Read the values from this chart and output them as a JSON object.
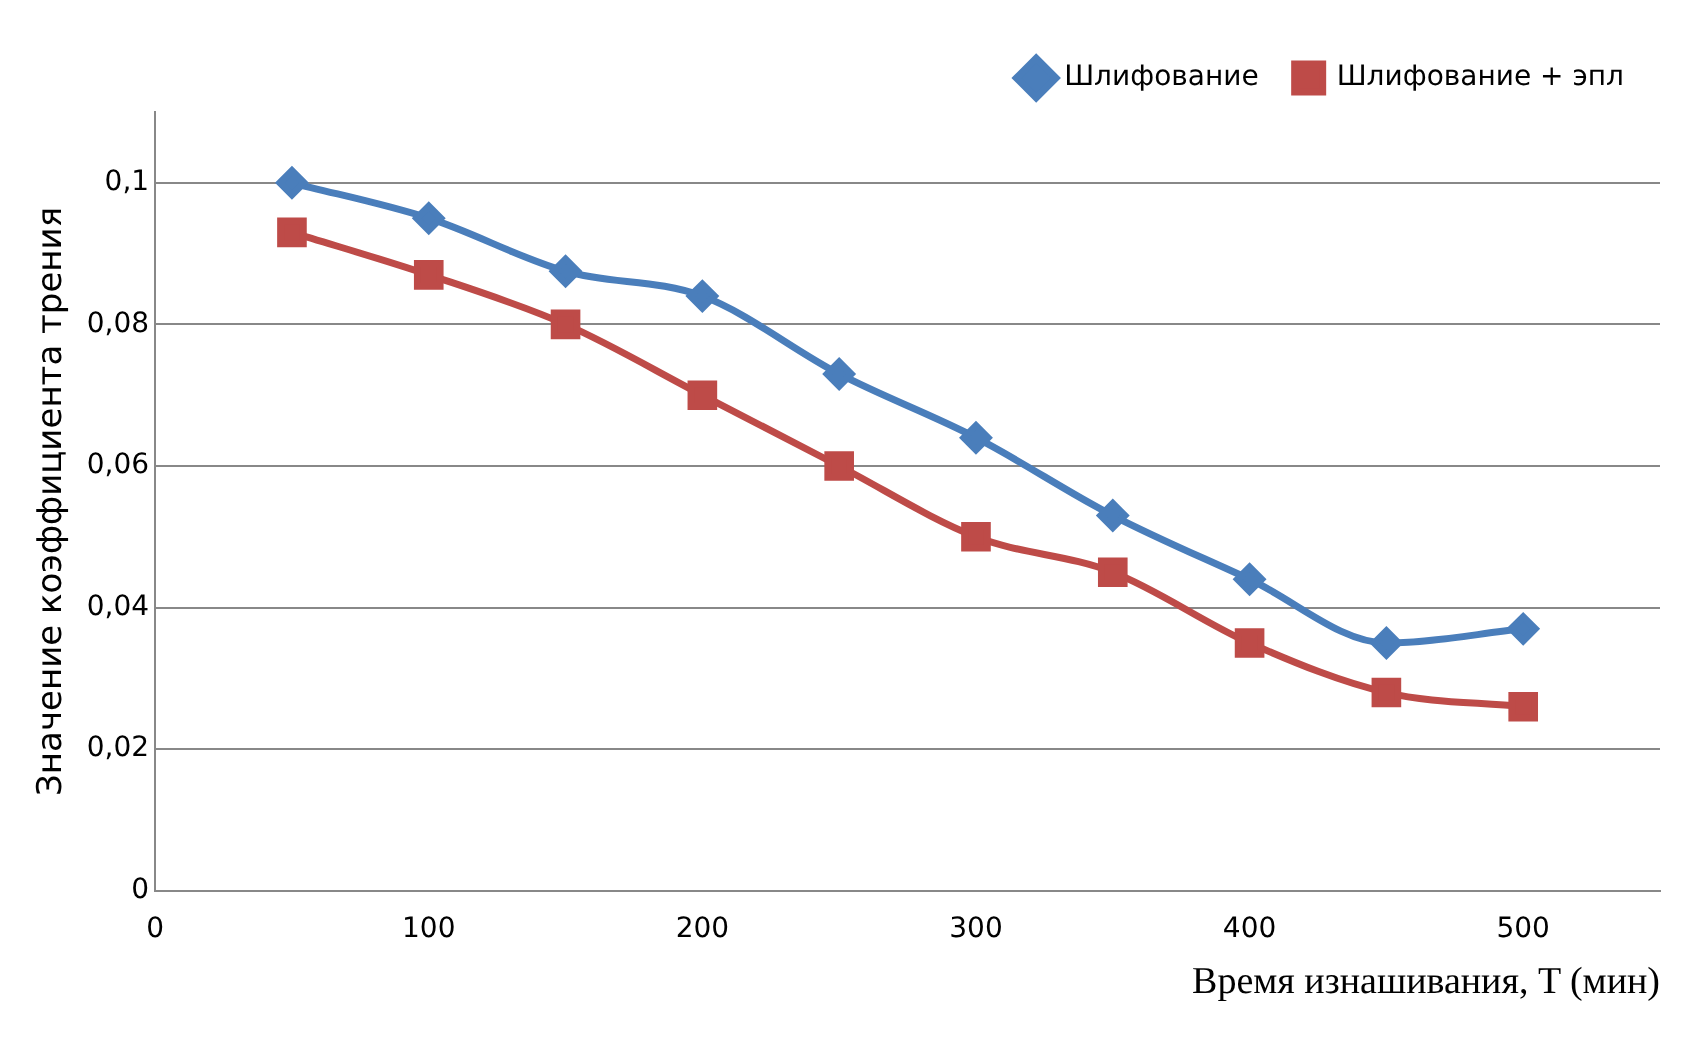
{
  "chart_data": {
    "type": "line",
    "xlabel": "Время изнашивания, T (мин)",
    "ylabel": "Значение коэффициента трения",
    "x": [
      50,
      100,
      150,
      200,
      250,
      300,
      350,
      400,
      450,
      500
    ],
    "series": [
      {
        "name": "Шлифование",
        "color": "#4a7ebb",
        "marker": "diamond",
        "values": [
          0.1,
          0.095,
          0.0875,
          0.084,
          0.073,
          0.064,
          0.053,
          0.044,
          0.035,
          0.037
        ]
      },
      {
        "name": "Шлифование + эпл",
        "color": "#be4b48",
        "marker": "square",
        "values": [
          0.093,
          0.087,
          0.08,
          0.07,
          0.06,
          0.05,
          0.045,
          0.035,
          0.028,
          0.026
        ]
      }
    ],
    "xlim": [
      0,
      550
    ],
    "xticks": [
      0,
      100,
      200,
      300,
      400,
      500
    ],
    "ylim": [
      0,
      0.11
    ],
    "yticks": [
      {
        "value": 0,
        "label": "0"
      },
      {
        "value": 0.02,
        "label": "0,02"
      },
      {
        "value": 0.04,
        "label": "0,04"
      },
      {
        "value": 0.06,
        "label": "0,06"
      },
      {
        "value": 0.08,
        "label": "0,08"
      },
      {
        "value": 0.1,
        "label": "0,1"
      }
    ],
    "grid": "y",
    "legend": "top right"
  }
}
